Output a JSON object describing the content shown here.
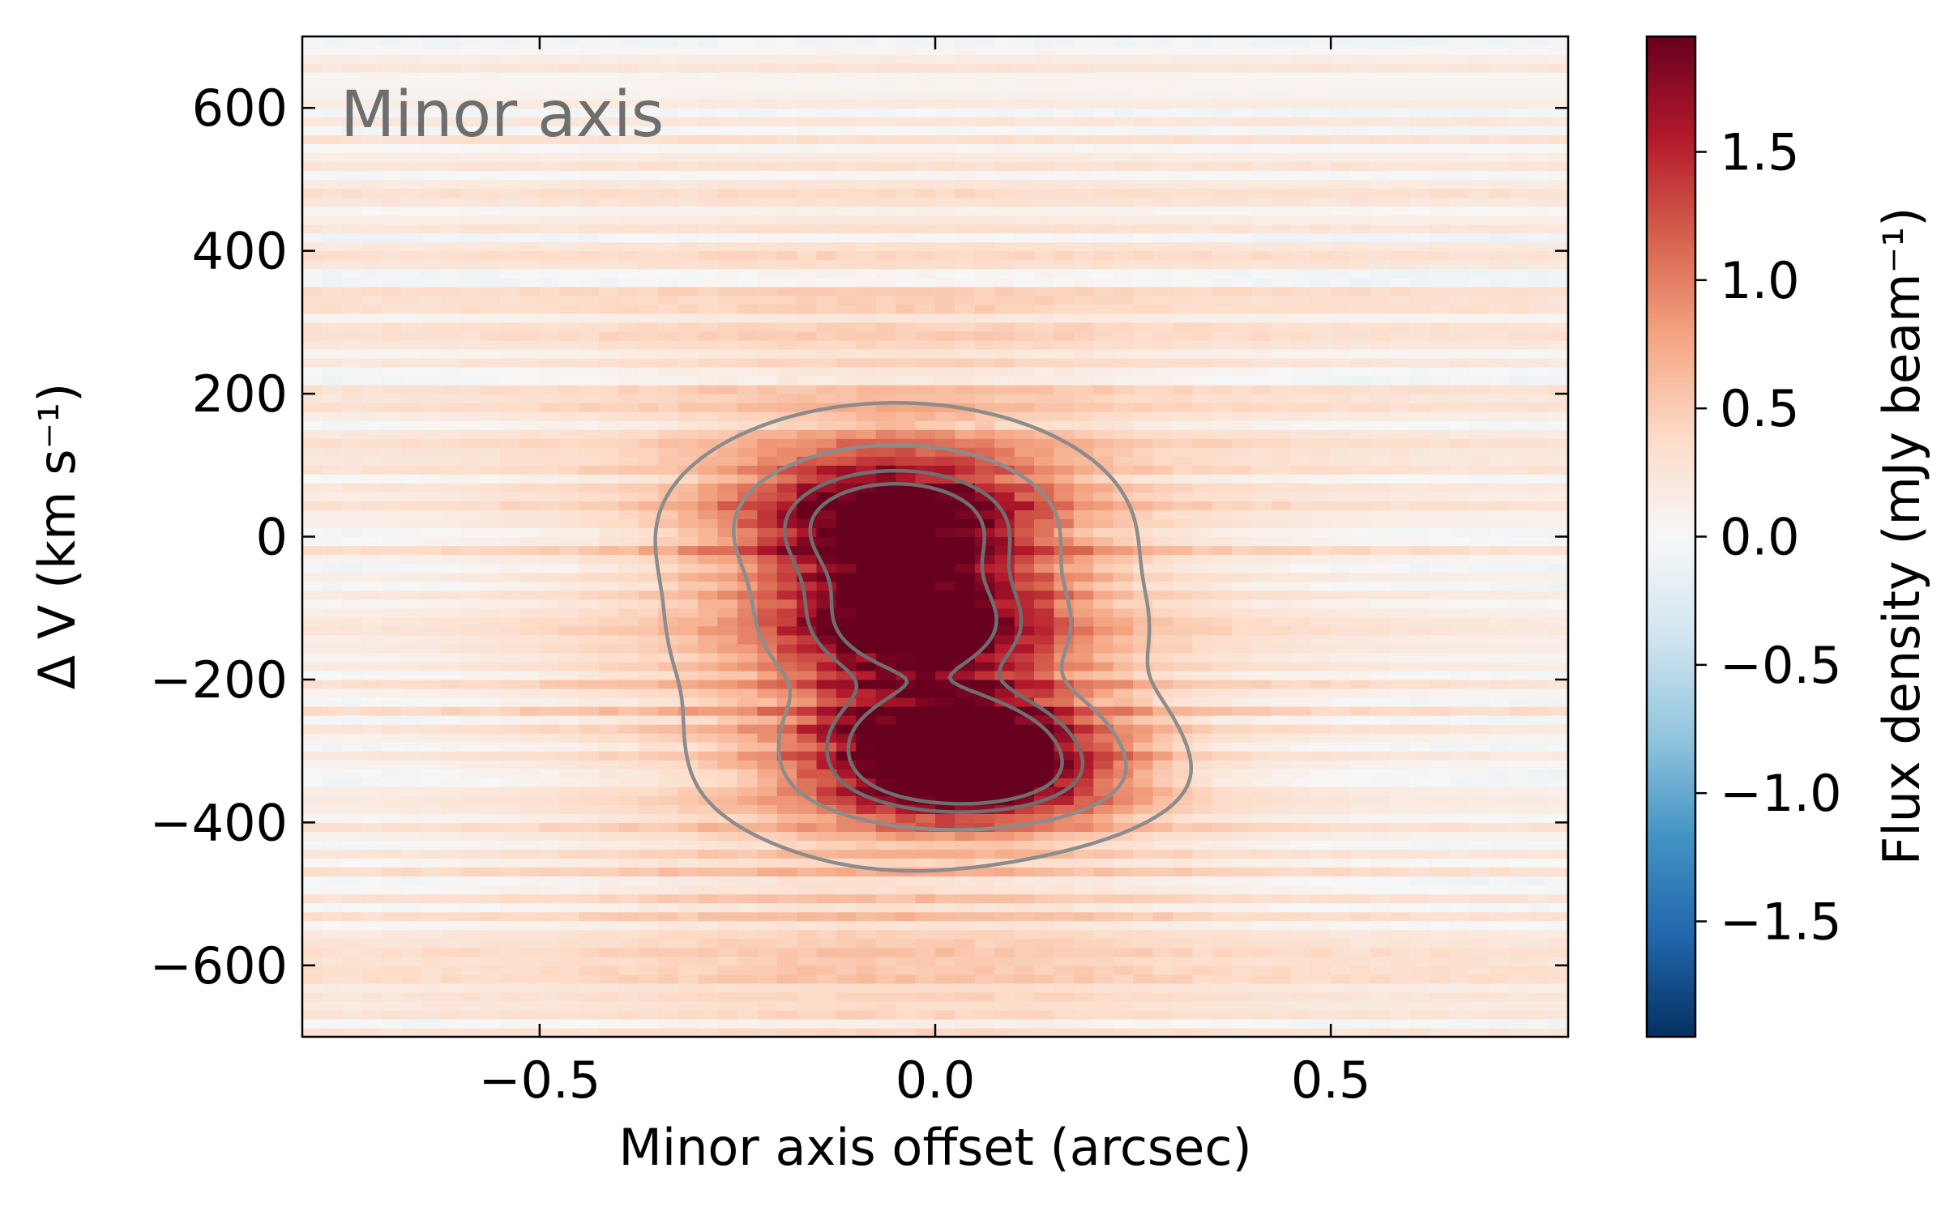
{
  "chart_data": {
    "type": "heatmap",
    "annotation": "Minor axis",
    "xlabel": "Minor axis offset (arcsec)",
    "ylabel": "Δ V (km s⁻¹)",
    "colorbar_label": "Flux density (mJy beam⁻¹)",
    "xlim": [
      -0.8,
      0.8
    ],
    "ylim": [
      -700,
      700
    ],
    "xticks": [
      -0.5,
      0.0,
      0.5
    ],
    "xtick_labels": [
      "−0.5",
      "0.0",
      "0.5"
    ],
    "yticks": [
      600,
      400,
      200,
      0,
      -200,
      -400,
      -600
    ],
    "ytick_labels": [
      "600",
      "400",
      "200",
      "0",
      "−200",
      "−400",
      "−600"
    ],
    "colorbar_range": [
      -1.95,
      1.95
    ],
    "colorbar_ticks": [
      1.5,
      1.0,
      0.5,
      0.0,
      -0.5,
      -1.0,
      -1.5
    ],
    "colorbar_tick_labels": [
      "1.5",
      "1.0",
      "0.5",
      "0.0",
      "−0.5",
      "−1.0",
      "−1.5"
    ],
    "colormap": "RdBu_r",
    "colormap_stops": [
      "#053061",
      "#2166ac",
      "#4393c3",
      "#92c5de",
      "#d1e5f0",
      "#f7f7f7",
      "#fddbc7",
      "#f4a582",
      "#d6604d",
      "#b2182b",
      "#67001f"
    ],
    "emission_components": [
      {
        "x_center": -0.05,
        "v_center": 20,
        "x_sigma": 0.13,
        "v_sigma": 70,
        "peak": 1.8
      },
      {
        "x_center": -0.02,
        "v_center": -130,
        "x_sigma": 0.12,
        "v_sigma": 60,
        "peak": 1.55
      },
      {
        "x_center": 0.02,
        "v_center": -270,
        "x_sigma": 0.12,
        "v_sigma": 45,
        "peak": 1.5
      },
      {
        "x_center": 0.04,
        "v_center": -340,
        "x_sigma": 0.13,
        "v_sigma": 45,
        "peak": 1.6
      },
      {
        "x_center": -0.05,
        "v_center": -180,
        "x_sigma": 0.3,
        "v_sigma": 330,
        "peak": 0.55
      }
    ],
    "contour_levels": [
      0.4,
      0.9,
      1.45,
      1.75
    ],
    "contour_color": "#8c8c8c",
    "grid": false
  }
}
